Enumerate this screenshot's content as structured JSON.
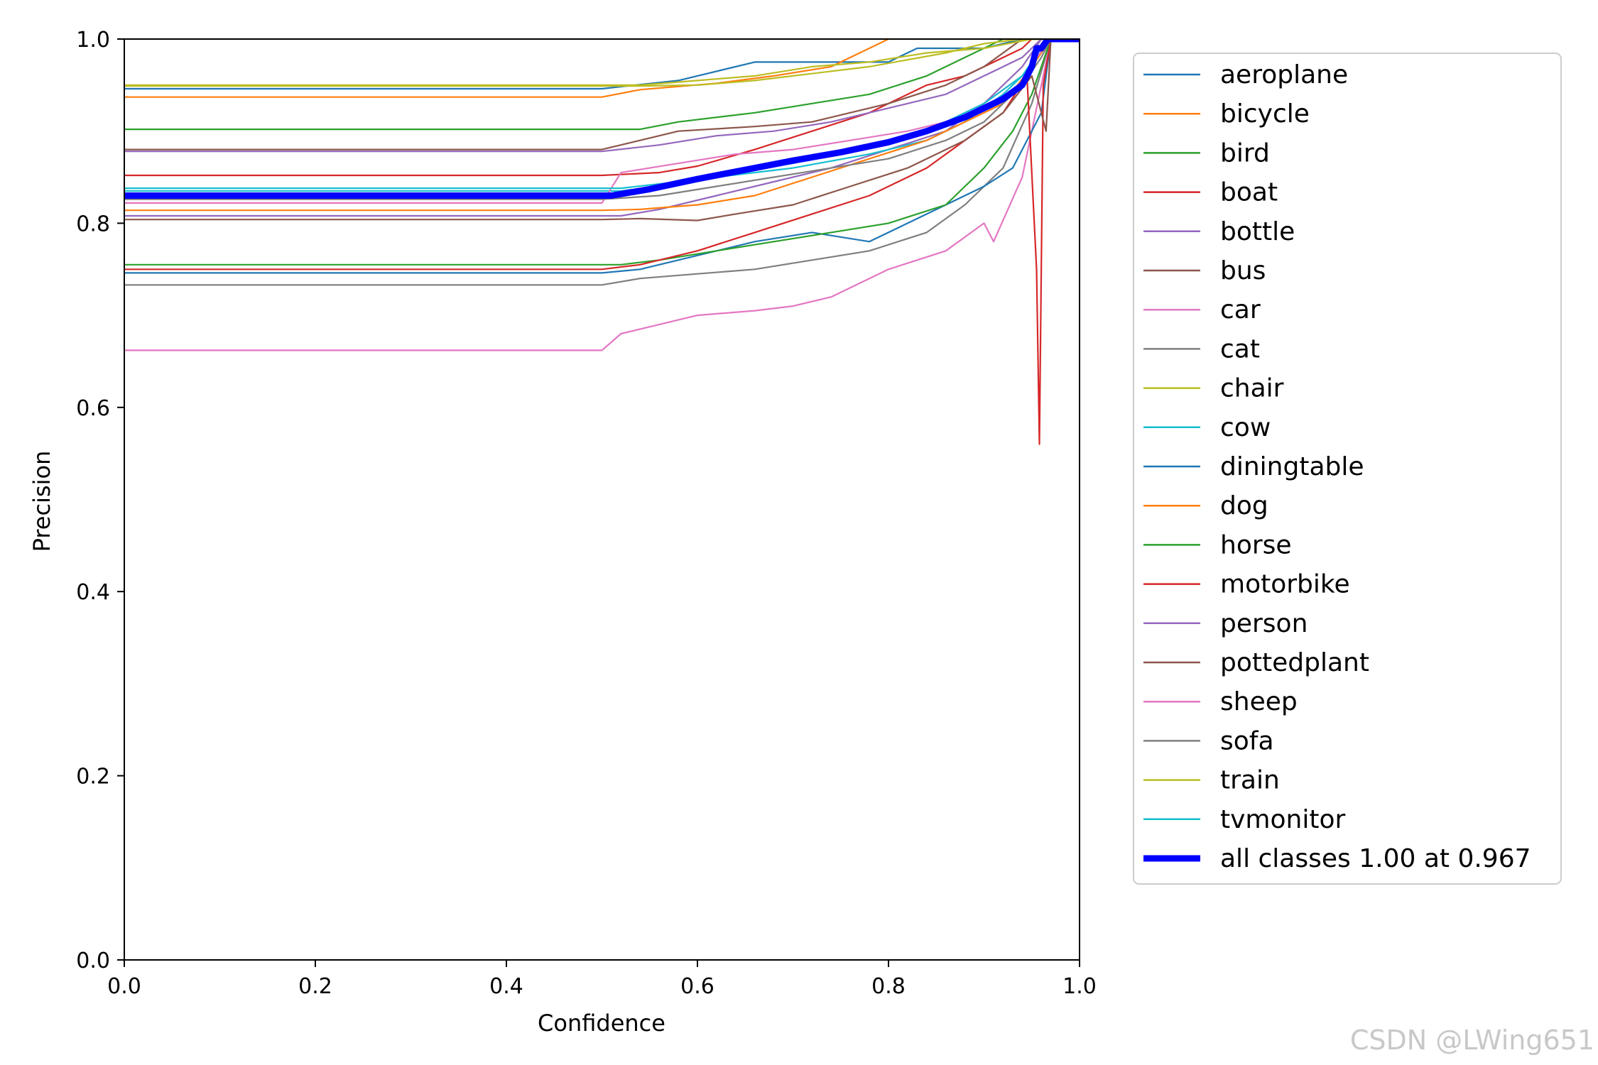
{
  "watermark": "CSDN @LWing651",
  "chart_data": {
    "type": "line",
    "title": "",
    "xlabel": "Confidence",
    "ylabel": "Precision",
    "xlim": [
      0,
      1
    ],
    "ylim": [
      0,
      1
    ],
    "xticks": [
      "0.0",
      "0.2",
      "0.4",
      "0.6",
      "0.8",
      "1.0"
    ],
    "yticks": [
      "0.0",
      "0.2",
      "0.4",
      "0.6",
      "0.8",
      "1.0"
    ],
    "grid": false,
    "legend_position": "outside-right",
    "series": [
      {
        "name": "aeroplane",
        "color": "#1f77b4",
        "points": [
          [
            0,
            0.946
          ],
          [
            0.5,
            0.946
          ],
          [
            0.58,
            0.955
          ],
          [
            0.62,
            0.965
          ],
          [
            0.66,
            0.975
          ],
          [
            0.75,
            0.975
          ],
          [
            0.8,
            0.975
          ],
          [
            0.83,
            0.99
          ],
          [
            0.9,
            0.99
          ],
          [
            0.94,
            1.0
          ],
          [
            1,
            1.0
          ]
        ]
      },
      {
        "name": "bicycle",
        "color": "#ff7f0e",
        "points": [
          [
            0,
            0.937
          ],
          [
            0.5,
            0.937
          ],
          [
            0.54,
            0.945
          ],
          [
            0.62,
            0.952
          ],
          [
            0.68,
            0.96
          ],
          [
            0.74,
            0.97
          ],
          [
            0.8,
            1.0
          ],
          [
            1,
            1.0
          ]
        ]
      },
      {
        "name": "bird",
        "color": "#2ca02c",
        "points": [
          [
            0,
            0.902
          ],
          [
            0.54,
            0.902
          ],
          [
            0.58,
            0.91
          ],
          [
            0.66,
            0.92
          ],
          [
            0.72,
            0.93
          ],
          [
            0.78,
            0.94
          ],
          [
            0.84,
            0.96
          ],
          [
            0.88,
            0.98
          ],
          [
            0.92,
            1.0
          ],
          [
            1,
            1.0
          ]
        ]
      },
      {
        "name": "boat",
        "color": "#d62728",
        "points": [
          [
            0,
            0.852
          ],
          [
            0.5,
            0.852
          ],
          [
            0.56,
            0.855
          ],
          [
            0.6,
            0.862
          ],
          [
            0.66,
            0.88
          ],
          [
            0.72,
            0.9
          ],
          [
            0.78,
            0.92
          ],
          [
            0.84,
            0.95
          ],
          [
            0.88,
            0.96
          ],
          [
            0.94,
            0.99
          ],
          [
            0.95,
            1.0
          ],
          [
            1,
            1.0
          ]
        ]
      },
      {
        "name": "bottle",
        "color": "#9467bd",
        "points": [
          [
            0,
            0.808
          ],
          [
            0.52,
            0.808
          ],
          [
            0.56,
            0.815
          ],
          [
            0.62,
            0.83
          ],
          [
            0.68,
            0.845
          ],
          [
            0.74,
            0.86
          ],
          [
            0.8,
            0.88
          ],
          [
            0.86,
            0.9
          ],
          [
            0.9,
            0.93
          ],
          [
            0.94,
            0.97
          ],
          [
            0.96,
            1.0
          ],
          [
            1,
            1.0
          ]
        ]
      },
      {
        "name": "bus",
        "color": "#8c564b",
        "points": [
          [
            0,
            0.88
          ],
          [
            0.5,
            0.88
          ],
          [
            0.54,
            0.89
          ],
          [
            0.58,
            0.9
          ],
          [
            0.66,
            0.905
          ],
          [
            0.72,
            0.91
          ],
          [
            0.8,
            0.93
          ],
          [
            0.86,
            0.95
          ],
          [
            0.9,
            0.97
          ],
          [
            0.94,
            1.0
          ],
          [
            1,
            1.0
          ]
        ]
      },
      {
        "name": "car",
        "color": "#e377c2",
        "points": [
          [
            0,
            0.662
          ],
          [
            0.5,
            0.662
          ],
          [
            0.52,
            0.68
          ],
          [
            0.56,
            0.69
          ],
          [
            0.6,
            0.7
          ],
          [
            0.66,
            0.705
          ],
          [
            0.7,
            0.71
          ],
          [
            0.74,
            0.72
          ],
          [
            0.8,
            0.75
          ],
          [
            0.86,
            0.77
          ],
          [
            0.9,
            0.8
          ],
          [
            0.91,
            0.78
          ],
          [
            0.94,
            0.85
          ],
          [
            0.96,
            0.95
          ],
          [
            0.97,
            1.0
          ],
          [
            1,
            1.0
          ]
        ]
      },
      {
        "name": "cat",
        "color": "#7f7f7f",
        "points": [
          [
            0,
            0.733
          ],
          [
            0.5,
            0.733
          ],
          [
            0.54,
            0.74
          ],
          [
            0.6,
            0.745
          ],
          [
            0.66,
            0.75
          ],
          [
            0.72,
            0.76
          ],
          [
            0.78,
            0.77
          ],
          [
            0.84,
            0.79
          ],
          [
            0.88,
            0.82
          ],
          [
            0.92,
            0.86
          ],
          [
            0.95,
            0.93
          ],
          [
            0.97,
            1.0
          ],
          [
            1,
            1.0
          ]
        ]
      },
      {
        "name": "chair",
        "color": "#bcbd22",
        "points": [
          [
            0,
            0.949
          ],
          [
            0.54,
            0.949
          ],
          [
            0.6,
            0.95
          ],
          [
            0.66,
            0.955
          ],
          [
            0.7,
            0.96
          ],
          [
            0.78,
            0.97
          ],
          [
            0.86,
            0.985
          ],
          [
            0.9,
            0.995
          ],
          [
            0.94,
            1.0
          ],
          [
            1,
            1.0
          ]
        ]
      },
      {
        "name": "cow",
        "color": "#17becf",
        "points": [
          [
            0,
            0.835
          ],
          [
            0.52,
            0.835
          ],
          [
            0.56,
            0.84
          ],
          [
            0.62,
            0.85
          ],
          [
            0.7,
            0.86
          ],
          [
            0.78,
            0.875
          ],
          [
            0.84,
            0.89
          ],
          [
            0.88,
            0.91
          ],
          [
            0.92,
            0.94
          ],
          [
            0.95,
            0.97
          ],
          [
            0.97,
            1.0
          ],
          [
            1,
            1.0
          ]
        ]
      },
      {
        "name": "diningtable",
        "color": "#1f77b4",
        "points": [
          [
            0,
            0.746
          ],
          [
            0.5,
            0.746
          ],
          [
            0.54,
            0.75
          ],
          [
            0.6,
            0.765
          ],
          [
            0.66,
            0.78
          ],
          [
            0.72,
            0.79
          ],
          [
            0.78,
            0.78
          ],
          [
            0.82,
            0.8
          ],
          [
            0.86,
            0.82
          ],
          [
            0.9,
            0.84
          ],
          [
            0.93,
            0.86
          ],
          [
            0.96,
            0.92
          ],
          [
            0.97,
            1.0
          ],
          [
            1,
            1.0
          ]
        ]
      },
      {
        "name": "dog",
        "color": "#ff7f0e",
        "points": [
          [
            0,
            0.814
          ],
          [
            0.5,
            0.814
          ],
          [
            0.54,
            0.815
          ],
          [
            0.6,
            0.82
          ],
          [
            0.66,
            0.83
          ],
          [
            0.72,
            0.85
          ],
          [
            0.78,
            0.87
          ],
          [
            0.84,
            0.89
          ],
          [
            0.88,
            0.91
          ],
          [
            0.92,
            0.93
          ],
          [
            0.95,
            0.97
          ],
          [
            0.97,
            1.0
          ],
          [
            1,
            1.0
          ]
        ]
      },
      {
        "name": "horse",
        "color": "#2ca02c",
        "points": [
          [
            0,
            0.755
          ],
          [
            0.52,
            0.755
          ],
          [
            0.56,
            0.76
          ],
          [
            0.62,
            0.77
          ],
          [
            0.68,
            0.78
          ],
          [
            0.74,
            0.79
          ],
          [
            0.8,
            0.8
          ],
          [
            0.86,
            0.82
          ],
          [
            0.9,
            0.86
          ],
          [
            0.93,
            0.9
          ],
          [
            0.95,
            0.94
          ],
          [
            0.97,
            1.0
          ],
          [
            1,
            1.0
          ]
        ]
      },
      {
        "name": "motorbike",
        "color": "#d62728",
        "points": [
          [
            0,
            0.75
          ],
          [
            0.5,
            0.75
          ],
          [
            0.54,
            0.755
          ],
          [
            0.6,
            0.77
          ],
          [
            0.66,
            0.79
          ],
          [
            0.72,
            0.81
          ],
          [
            0.78,
            0.83
          ],
          [
            0.84,
            0.86
          ],
          [
            0.88,
            0.89
          ],
          [
            0.92,
            0.92
          ],
          [
            0.945,
            0.96
          ],
          [
            0.955,
            0.75
          ],
          [
            0.958,
            0.56
          ],
          [
            0.962,
            0.95
          ],
          [
            0.97,
            1.0
          ],
          [
            1,
            1.0
          ]
        ]
      },
      {
        "name": "person",
        "color": "#9467bd",
        "points": [
          [
            0,
            0.878
          ],
          [
            0.5,
            0.878
          ],
          [
            0.56,
            0.885
          ],
          [
            0.62,
            0.895
          ],
          [
            0.68,
            0.9
          ],
          [
            0.74,
            0.91
          ],
          [
            0.8,
            0.925
          ],
          [
            0.86,
            0.94
          ],
          [
            0.9,
            0.96
          ],
          [
            0.94,
            0.98
          ],
          [
            0.96,
            1.0
          ],
          [
            1,
            1.0
          ]
        ]
      },
      {
        "name": "pottedplant",
        "color": "#8c564b",
        "points": [
          [
            0,
            0.804
          ],
          [
            0.5,
            0.804
          ],
          [
            0.54,
            0.805
          ],
          [
            0.6,
            0.803
          ],
          [
            0.64,
            0.81
          ],
          [
            0.7,
            0.82
          ],
          [
            0.76,
            0.84
          ],
          [
            0.82,
            0.86
          ],
          [
            0.88,
            0.89
          ],
          [
            0.92,
            0.92
          ],
          [
            0.95,
            0.96
          ],
          [
            0.965,
            0.9
          ],
          [
            0.97,
            1.0
          ],
          [
            1,
            1.0
          ]
        ]
      },
      {
        "name": "sheep",
        "color": "#e377c2",
        "points": [
          [
            0,
            0.822
          ],
          [
            0.5,
            0.822
          ],
          [
            0.52,
            0.855
          ],
          [
            0.58,
            0.865
          ],
          [
            0.64,
            0.875
          ],
          [
            0.7,
            0.88
          ],
          [
            0.76,
            0.89
          ],
          [
            0.82,
            0.9
          ],
          [
            0.86,
            0.91
          ],
          [
            0.9,
            0.93
          ],
          [
            0.94,
            0.96
          ],
          [
            0.97,
            1.0
          ],
          [
            1,
            1.0
          ]
        ]
      },
      {
        "name": "sofa",
        "color": "#7f7f7f",
        "points": [
          [
            0,
            0.826
          ],
          [
            0.5,
            0.826
          ],
          [
            0.56,
            0.83
          ],
          [
            0.62,
            0.84
          ],
          [
            0.68,
            0.85
          ],
          [
            0.74,
            0.86
          ],
          [
            0.8,
            0.87
          ],
          [
            0.86,
            0.89
          ],
          [
            0.9,
            0.91
          ],
          [
            0.94,
            0.95
          ],
          [
            0.96,
            0.98
          ],
          [
            0.97,
            1.0
          ],
          [
            1,
            1.0
          ]
        ]
      },
      {
        "name": "train",
        "color": "#bcbd22",
        "points": [
          [
            0,
            0.95
          ],
          [
            0.54,
            0.95
          ],
          [
            0.6,
            0.955
          ],
          [
            0.66,
            0.96
          ],
          [
            0.72,
            0.97
          ],
          [
            0.78,
            0.975
          ],
          [
            0.84,
            0.985
          ],
          [
            0.9,
            0.99
          ],
          [
            0.95,
            1.0
          ],
          [
            1,
            1.0
          ]
        ]
      },
      {
        "name": "tvmonitor",
        "color": "#17becf",
        "points": [
          [
            0,
            0.838
          ],
          [
            0.52,
            0.838
          ],
          [
            0.58,
            0.845
          ],
          [
            0.64,
            0.855
          ],
          [
            0.7,
            0.865
          ],
          [
            0.76,
            0.88
          ],
          [
            0.82,
            0.895
          ],
          [
            0.86,
            0.91
          ],
          [
            0.9,
            0.93
          ],
          [
            0.94,
            0.96
          ],
          [
            0.96,
            0.99
          ],
          [
            0.97,
            1.0
          ],
          [
            1,
            1.0
          ]
        ]
      }
    ],
    "summary_series": {
      "name": "all classes 1.00 at 0.967",
      "color": "#0000ff",
      "points": [
        [
          0,
          0.83
        ],
        [
          0.51,
          0.83
        ],
        [
          0.55,
          0.837
        ],
        [
          0.6,
          0.848
        ],
        [
          0.65,
          0.858
        ],
        [
          0.7,
          0.868
        ],
        [
          0.75,
          0.877
        ],
        [
          0.8,
          0.888
        ],
        [
          0.84,
          0.9
        ],
        [
          0.88,
          0.915
        ],
        [
          0.9,
          0.925
        ],
        [
          0.92,
          0.935
        ],
        [
          0.94,
          0.95
        ],
        [
          0.95,
          0.97
        ],
        [
          0.955,
          0.99
        ],
        [
          0.96,
          0.99
        ],
        [
          0.967,
          1.0
        ],
        [
          1,
          1.0
        ]
      ]
    }
  }
}
